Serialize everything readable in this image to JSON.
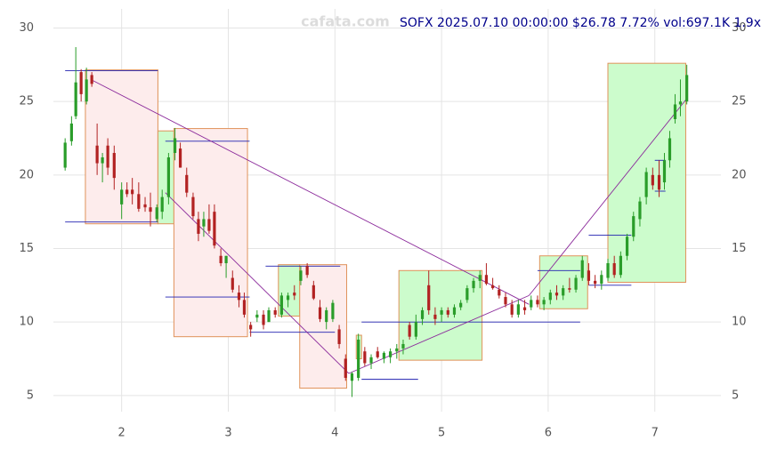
{
  "chart_data": {
    "type": "candlestick",
    "title": "SOFX 2025.07.10 00:00:00 $26.78 7.72% vol:697.1K 1.9x",
    "watermark": "cafata.com",
    "xlim": [
      1.36,
      7.62
    ],
    "ylim": [
      3.9,
      31.3
    ],
    "xticks": [
      2,
      3,
      4,
      5,
      6,
      7
    ],
    "yticks": [
      5,
      10,
      15,
      20,
      25,
      30
    ],
    "grid": true,
    "up_color": "#2a9d2a",
    "down_color": "#b22222",
    "x": [
      1.47,
      1.53,
      1.57,
      1.62,
      1.67,
      1.72,
      1.77,
      1.82,
      1.87,
      1.93,
      2.0,
      2.05,
      2.1,
      2.16,
      2.22,
      2.27,
      2.33,
      2.38,
      2.44,
      2.5,
      2.55,
      2.61,
      2.67,
      2.72,
      2.77,
      2.82,
      2.87,
      2.93,
      2.98,
      3.04,
      3.1,
      3.15,
      3.21,
      3.27,
      3.33,
      3.38,
      3.44,
      3.5,
      3.56,
      3.62,
      3.68,
      3.74,
      3.8,
      3.86,
      3.92,
      3.98,
      4.04,
      4.1,
      4.16,
      4.22,
      4.28,
      4.34,
      4.4,
      4.46,
      4.52,
      4.58,
      4.64,
      4.7,
      4.76,
      4.82,
      4.88,
      4.94,
      5.0,
      5.06,
      5.12,
      5.18,
      5.24,
      5.3,
      5.36,
      5.42,
      5.48,
      5.54,
      5.6,
      5.66,
      5.72,
      5.78,
      5.84,
      5.9,
      5.96,
      6.02,
      6.08,
      6.14,
      6.2,
      6.26,
      6.32,
      6.38,
      6.44,
      6.5,
      6.56,
      6.62,
      6.68,
      6.74,
      6.8,
      6.86,
      6.92,
      6.98,
      7.04,
      7.09,
      7.14,
      7.19,
      7.24,
      7.3
    ],
    "open": [
      20.5,
      22.3,
      24,
      27,
      25,
      26.8,
      22,
      20.8,
      22,
      21.5,
      18,
      19,
      19,
      18.7,
      18,
      17.8,
      17,
      17.5,
      18.5,
      21.5,
      21.8,
      20,
      18.5,
      17,
      16.5,
      17,
      17.5,
      14.5,
      14,
      13,
      12,
      11.5,
      9.8,
      10.3,
      10.5,
      10,
      10.8,
      10.5,
      11.5,
      12,
      12.8,
      13.8,
      12.5,
      11,
      10,
      10.2,
      9.5,
      7.5,
      6,
      6.2,
      8,
      7.2,
      8,
      7.5,
      7.6,
      8,
      8.2,
      9.8,
      9,
      10.2,
      12.5,
      10.5,
      10.5,
      10.8,
      10.5,
      11,
      11.5,
      12.3,
      12.8,
      13.2,
      12.5,
      12.2,
      11.7,
      11.2,
      10.5,
      11,
      11,
      11.5,
      11.2,
      11.5,
      12,
      11.8,
      12.3,
      12.2,
      13,
      13.5,
      12.8,
      12.6,
      13,
      14,
      13.2,
      14.5,
      15.8,
      17,
      18.5,
      20,
      20,
      19.5,
      21,
      23.8,
      24.8,
      25
    ],
    "high": [
      22.5,
      24,
      28.7,
      27.2,
      27.3,
      27,
      23.5,
      21.5,
      22.5,
      22,
      19.5,
      19.5,
      19.8,
      19.5,
      18.5,
      18.8,
      18,
      19,
      21.5,
      23.2,
      22.2,
      20.5,
      18.8,
      17.5,
      17.5,
      18,
      18,
      15,
      14.5,
      13.5,
      12.5,
      12,
      10,
      10.8,
      10.8,
      11,
      11,
      12,
      12,
      12.5,
      13.8,
      14,
      12.8,
      11.5,
      11,
      11.5,
      9.8,
      7.8,
      6.6,
      9.2,
      8.3,
      7.8,
      8.3,
      8,
      8.2,
      8.5,
      8.8,
      10,
      10.5,
      11,
      13.5,
      11,
      11,
      11,
      11.2,
      11.5,
      12.5,
      13,
      13.5,
      14,
      13,
      12.5,
      12,
      11.5,
      11.5,
      11.5,
      11.8,
      11.8,
      11.7,
      12.2,
      12.5,
      12.5,
      13,
      13.2,
      14.5,
      14,
      13.2,
      13.5,
      14.3,
      14.5,
      14.8,
      16,
      17.5,
      18.5,
      20.5,
      20.5,
      21,
      21.5,
      23,
      25.5,
      26.5,
      27.5
    ],
    "low": [
      20.3,
      22,
      23.8,
      25,
      24.8,
      26,
      20,
      19.5,
      20,
      19,
      17,
      18.5,
      18,
      17.5,
      17.5,
      16.5,
      16.8,
      17,
      18,
      21,
      20.5,
      18.5,
      17,
      15.5,
      15.8,
      16,
      15,
      13.8,
      13,
      12,
      11,
      10.3,
      9,
      10,
      9.5,
      10,
      10.3,
      10.3,
      11,
      11.5,
      12.5,
      13,
      11.5,
      10,
      9.5,
      10,
      8.2,
      6,
      4.9,
      6,
      7,
      6.8,
      7.5,
      7.2,
      7.2,
      7.5,
      7.8,
      8.8,
      8.8,
      9.8,
      10.5,
      9.8,
      10,
      10.3,
      10.3,
      10.8,
      11.3,
      12,
      12.3,
      12.5,
      12.2,
      11.6,
      11,
      10.3,
      10.3,
      10.5,
      10.8,
      11,
      10.8,
      11.2,
      11.5,
      11.5,
      12,
      12,
      12.8,
      12.5,
      12.3,
      12.2,
      12.8,
      13,
      13,
      14.2,
      15.5,
      16.5,
      18,
      19,
      18.5,
      19,
      20.5,
      23.5,
      24,
      24.8
    ],
    "close": [
      22.2,
      23.5,
      26.3,
      25.5,
      26.5,
      26.2,
      20.8,
      21.2,
      20.5,
      19.8,
      19,
      18.7,
      18.7,
      17.7,
      17.8,
      17.5,
      17.8,
      18.5,
      21.2,
      22.5,
      20.5,
      18.8,
      17.2,
      16,
      17,
      16.2,
      15.2,
      14,
      14.5,
      12.2,
      11.5,
      10.5,
      9.5,
      10.5,
      9.8,
      10.8,
      10.5,
      11.8,
      11.8,
      11.8,
      13.5,
      13.2,
      11.6,
      10.2,
      10.8,
      11.3,
      8.5,
      6.2,
      6.5,
      8.8,
      7.2,
      7.6,
      7.6,
      7.9,
      8,
      8.2,
      8.5,
      9,
      10,
      10.8,
      10.8,
      10.2,
      10.8,
      10.5,
      11,
      11.3,
      12.3,
      12.8,
      13.2,
      12.6,
      12.3,
      11.8,
      11.2,
      10.5,
      11.2,
      10.8,
      11.5,
      11.2,
      11.5,
      12,
      11.8,
      12.3,
      12.2,
      13,
      14.2,
      12.8,
      12.6,
      13.2,
      14,
      13.2,
      14.5,
      15.8,
      17.2,
      18.2,
      20.2,
      19.3,
      19,
      21,
      22.5,
      24.8,
      25,
      26.8
    ],
    "zones": [
      {
        "x": [
          1.66,
          2.34
        ],
        "y": [
          16.68,
          27.15
        ],
        "color": "#fdecec"
      },
      {
        "x": [
          2.34,
          2.49
        ],
        "y": [
          16.68,
          23.0
        ],
        "color": "#ccfccc"
      },
      {
        "x": [
          2.49,
          3.18
        ],
        "y": [
          9.0,
          23.16
        ],
        "color": "#fdecec"
      },
      {
        "x": [
          3.47,
          3.67
        ],
        "y": [
          10.4,
          13.9
        ],
        "color": "#ccfccc"
      },
      {
        "x": [
          3.67,
          4.11
        ],
        "y": [
          5.5,
          13.9
        ],
        "color": "#fdecec"
      },
      {
        "x": [
          4.2,
          4.25
        ],
        "y": [
          7.5,
          9.1
        ],
        "color": "#ccfccc"
      },
      {
        "x": [
          4.6,
          5.38
        ],
        "y": [
          7.4,
          13.5
        ],
        "color": "#ccfccc"
      },
      {
        "x": [
          5.92,
          6.37
        ],
        "y": [
          10.9,
          14.5
        ],
        "color": "#ccfccc"
      },
      {
        "x": [
          6.56,
          7.29
        ],
        "y": [
          12.7,
          27.6
        ],
        "color": "#ccfccc"
      }
    ],
    "trend_lines": [
      {
        "x": [
          1.71,
          5.82
        ],
        "y": [
          26.5,
          11.2
        ]
      },
      {
        "x": [
          2.41,
          4.13
        ],
        "y": [
          18.8,
          6.5
        ]
      },
      {
        "x": [
          4.13,
          5.82
        ],
        "y": [
          6.5,
          11.8
        ]
      },
      {
        "x": [
          5.82,
          7.3
        ],
        "y": [
          11.8,
          25.2
        ]
      }
    ],
    "levels": [
      {
        "x": [
          1.47,
          2.34
        ],
        "y": 27.1
      },
      {
        "x": [
          1.47,
          2.34
        ],
        "y": 16.8
      },
      {
        "x": [
          2.41,
          3.2
        ],
        "y": 22.3
      },
      {
        "x": [
          2.41,
          3.2
        ],
        "y": 11.7
      },
      {
        "x": [
          3.2,
          4.0
        ],
        "y": 9.3
      },
      {
        "x": [
          3.35,
          4.05
        ],
        "y": 13.8
      },
      {
        "x": [
          4.25,
          5.3
        ],
        "y": 10.0
      },
      {
        "x": [
          4.25,
          4.78
        ],
        "y": 6.1
      },
      {
        "x": [
          5.3,
          6.3
        ],
        "y": 10.0
      },
      {
        "x": [
          5.9,
          6.3
        ],
        "y": 13.5
      },
      {
        "x": [
          6.38,
          6.78
        ],
        "y": 15.9
      },
      {
        "x": [
          6.38,
          6.78
        ],
        "y": 12.5
      },
      {
        "x": [
          7.0,
          7.1
        ],
        "y": 21.0
      },
      {
        "x": [
          7.0,
          7.1
        ],
        "y": 18.9
      }
    ]
  }
}
